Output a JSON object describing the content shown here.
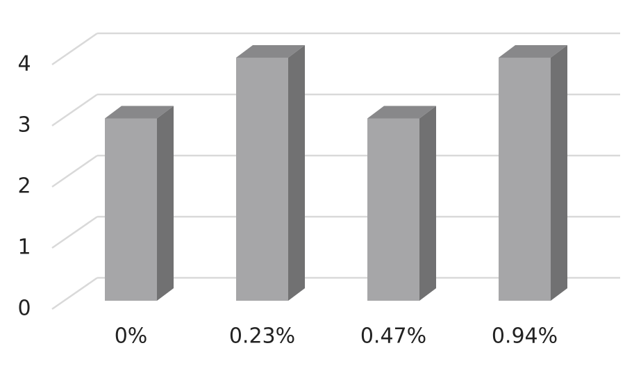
{
  "chart_data": {
    "type": "bar3d",
    "categories": [
      "0%",
      "0.23%",
      "0.47%",
      "0.94%"
    ],
    "values": [
      3,
      4,
      3,
      4
    ],
    "color": "#a6a6a8",
    "ylim": [
      0,
      4
    ],
    "yticks": [
      0,
      1,
      2,
      3,
      4
    ],
    "grid": true
  }
}
